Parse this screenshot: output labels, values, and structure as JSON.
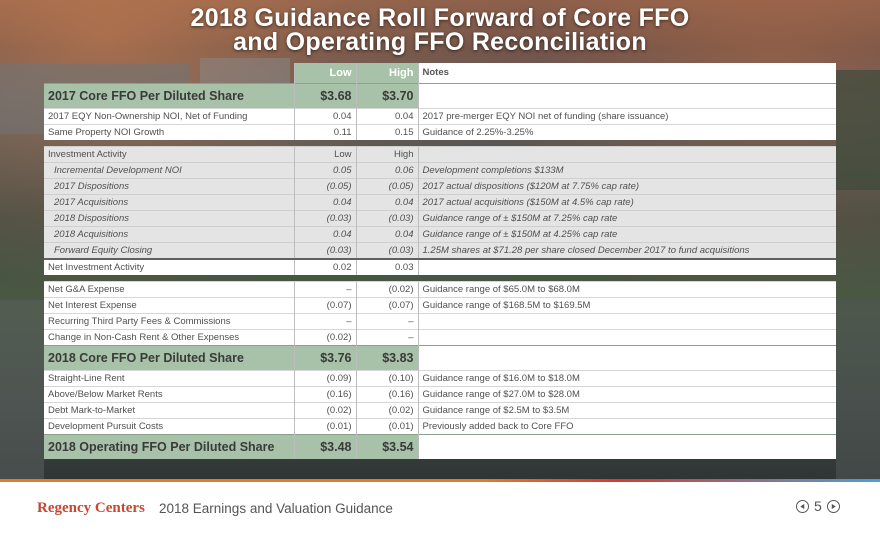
{
  "title": {
    "line1": "2018 Guidance Roll Forward of Core FFO",
    "line2": "and Operating FFO Reconciliation"
  },
  "header": {
    "low": "Low",
    "high": "High",
    "notes": "Notes"
  },
  "rows": [
    {
      "type": "big",
      "label": "2017 Core FFO Per Diluted Share",
      "low": "$3.68",
      "high": "$3.70",
      "note": ""
    },
    {
      "type": "white",
      "label": "2017 EQY Non-Ownership NOI, Net of Funding",
      "low": "0.04",
      "high": "0.04",
      "note": "2017 pre-merger EQY NOI net of funding (share issuance)"
    },
    {
      "type": "white",
      "label": "Same Property NOI Growth",
      "low": "0.11",
      "high": "0.15",
      "note": "Guidance of 2.25%-3.25%"
    },
    {
      "type": "gap"
    },
    {
      "type": "grey",
      "label": "Investment Activity",
      "low": "Low",
      "high": "High",
      "note": ""
    },
    {
      "type": "sub",
      "label": "Incremental Development NOI",
      "low": "0.05",
      "high": "0.06",
      "note": "Development completions $133M"
    },
    {
      "type": "sub",
      "label": "2017 Dispositions",
      "low": "(0.05)",
      "high": "(0.05)",
      "note": "2017 actual dispositions ($120M at 7.75% cap rate)"
    },
    {
      "type": "sub",
      "label": "2017 Acquisitions",
      "low": "0.04",
      "high": "0.04",
      "note": "2017 actual acquisitions ($150M at 4.5% cap rate)"
    },
    {
      "type": "sub",
      "label": "2018 Dispositions",
      "low": "(0.03)",
      "high": "(0.03)",
      "note": "Guidance range of ± $150M at 7.25% cap rate"
    },
    {
      "type": "sub",
      "label": "2018 Acquisitions",
      "low": "0.04",
      "high": "0.04",
      "note": "Guidance range of ± $150M at 4.25% cap rate"
    },
    {
      "type": "sub-heavy",
      "label": "Forward Equity Closing",
      "low": "(0.03)",
      "high": "(0.03)",
      "note": "1.25M shares at $71.28 per share closed December 2017 to fund acquisitions"
    },
    {
      "type": "white",
      "label": "Net Investment Activity",
      "low": "0.02",
      "high": "0.03",
      "note": ""
    },
    {
      "type": "gap"
    },
    {
      "type": "white",
      "label": "Net G&A Expense",
      "low": "–",
      "high": "(0.02)",
      "note": "Guidance range of $65.0M to $68.0M"
    },
    {
      "type": "white",
      "label": "Net Interest Expense",
      "low": "(0.07)",
      "high": "(0.07)",
      "note": "Guidance range of $168.5M to $169.5M"
    },
    {
      "type": "white",
      "label": "Recurring Third Party Fees & Commissions",
      "low": "–",
      "high": "–",
      "note": ""
    },
    {
      "type": "white",
      "label": "Change in Non-Cash Rent & Other Expenses",
      "low": "(0.02)",
      "high": "–",
      "note": ""
    },
    {
      "type": "big",
      "label": "2018 Core FFO Per Diluted Share",
      "low": "$3.76",
      "high": "$3.83",
      "note": ""
    },
    {
      "type": "white",
      "label": "Straight-Line Rent",
      "low": "(0.09)",
      "high": "(0.10)",
      "note": "Guidance range of $16.0M to $18.0M"
    },
    {
      "type": "white",
      "label": "Above/Below Market Rents",
      "low": "(0.16)",
      "high": "(0.16)",
      "note": "Guidance range of $27.0M to $28.0M"
    },
    {
      "type": "white",
      "label": "Debt Mark-to-Market",
      "low": "(0.02)",
      "high": "(0.02)",
      "note": "Guidance range of $2.5M to $3.5M"
    },
    {
      "type": "white",
      "label": "Development Pursuit Costs",
      "low": "(0.01)",
      "high": "(0.01)",
      "note": "Previously added back to Core FFO"
    },
    {
      "type": "big",
      "label": "2018 Operating FFO Per Diluted Share",
      "low": "$3.48",
      "high": "$3.54",
      "note": ""
    }
  ],
  "footer": {
    "brand": "Regency Centers",
    "subtitle": "2018 Earnings and Valuation Guidance",
    "page": "5"
  },
  "colors": {
    "green": "#a7c2a8",
    "brand": "#c8472f",
    "grey_row": "#e4e4e4"
  }
}
